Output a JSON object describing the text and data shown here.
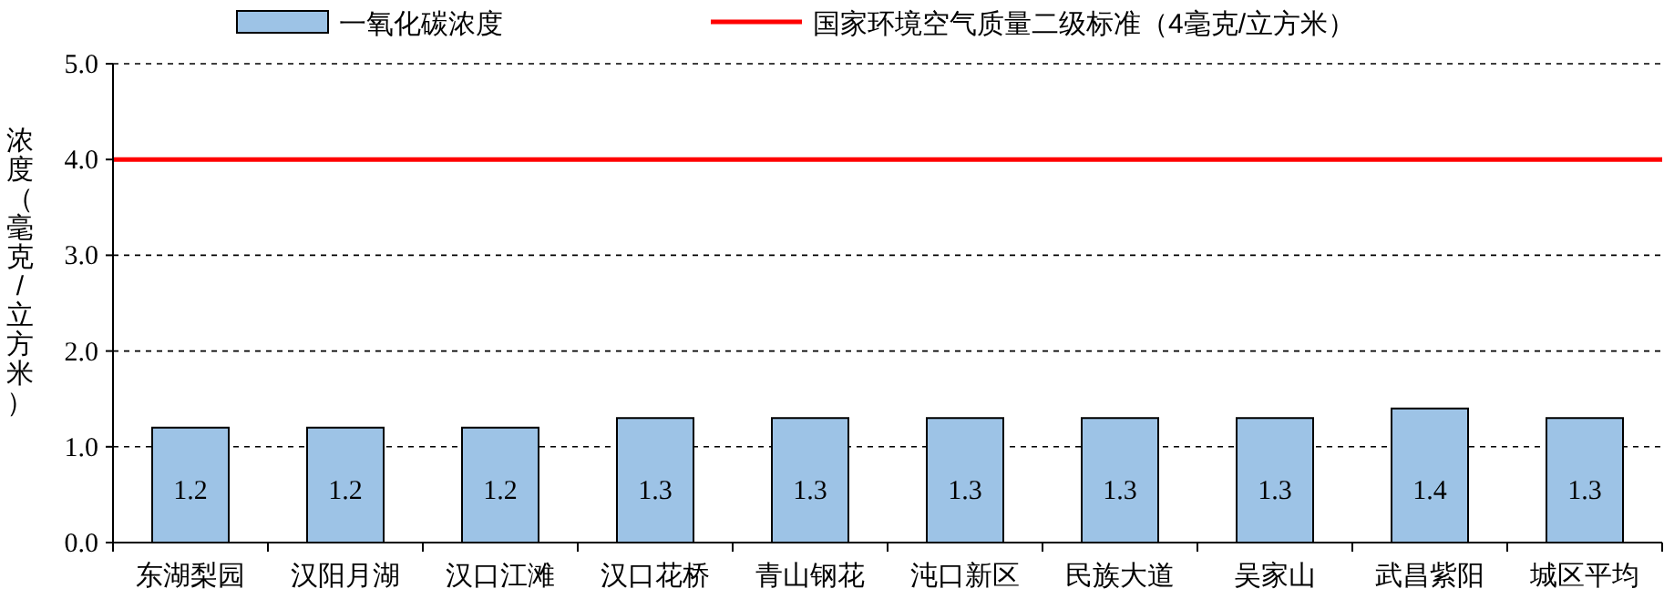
{
  "chart_data": {
    "type": "bar",
    "ylabel": "浓度（毫克/立方米）",
    "categories": [
      "东湖梨园",
      "汉阳月湖",
      "汉口江滩",
      "汉口花桥",
      "青山钢花",
      "沌口新区",
      "民族大道",
      "吴家山",
      "武昌紫阳",
      "城区平均"
    ],
    "series": [
      {
        "name": "一氧化碳浓度",
        "color": "#9dc3e6",
        "values": [
          1.2,
          1.2,
          1.2,
          1.3,
          1.3,
          1.3,
          1.3,
          1.3,
          1.4,
          1.3
        ]
      }
    ],
    "ylim": [
      0,
      5
    ],
    "yticks": [
      {
        "value": 0,
        "label": "0.0"
      },
      {
        "value": 1,
        "label": "1.0"
      },
      {
        "value": 2,
        "label": "2.0"
      },
      {
        "value": 3,
        "label": "3.0"
      },
      {
        "value": 4,
        "label": "4.0"
      },
      {
        "value": 5,
        "label": "5.0"
      }
    ],
    "ref_lines": [
      {
        "axis": "y",
        "value": 4,
        "label": "国家环境空气质量二级标准（4毫克/立方米）",
        "color": "#ff0000",
        "line_style": "solid"
      }
    ],
    "grid": "y",
    "legend": "top",
    "data_labels": true
  }
}
